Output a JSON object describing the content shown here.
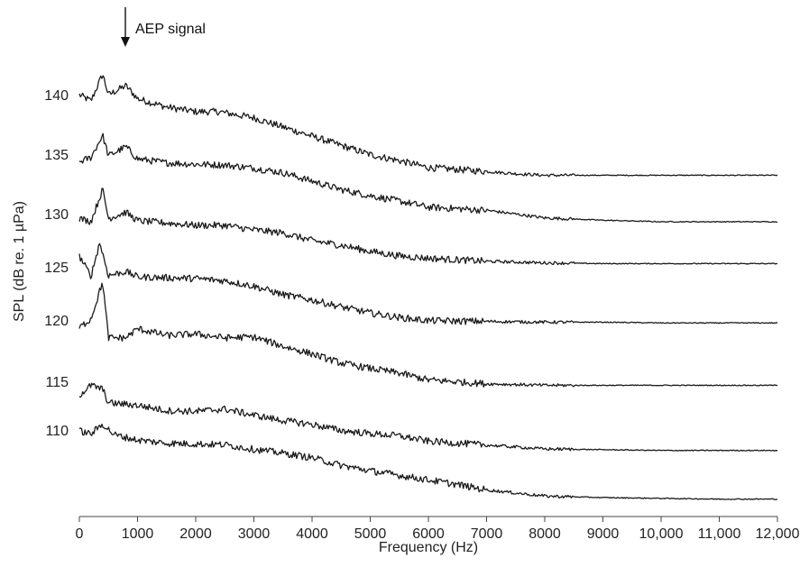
{
  "chart_data": {
    "type": "line",
    "title": "",
    "xlabel": "Frequency (Hz)",
    "ylabel": "SPL (dB re. 1 µPa)",
    "xlim": [
      0,
      12000
    ],
    "x_ticks": [
      0,
      1000,
      2000,
      3000,
      4000,
      5000,
      6000,
      7000,
      8000,
      9000,
      10000,
      11000,
      12000
    ],
    "x_tick_labels": [
      "0",
      "1000",
      "2000",
      "3000",
      "4000",
      "5000",
      "6000",
      "7000",
      "8000",
      "9000",
      "10,000",
      "11,000",
      "12,000"
    ],
    "y_tick_labels": [
      "140",
      "135",
      "130",
      "125",
      "120",
      "115",
      "110"
    ],
    "grid": false,
    "annotation": {
      "text": "AEP signal",
      "x": 800
    },
    "series": [
      {
        "level": 140,
        "values": [
          [
            0,
            8
          ],
          [
            200,
            0
          ],
          [
            400,
            35
          ],
          [
            500,
            8
          ],
          [
            800,
            20
          ],
          [
            1000,
            3
          ],
          [
            1500,
            -8
          ],
          [
            2000,
            -14
          ],
          [
            2400,
            -14
          ],
          [
            3000,
            -22
          ],
          [
            3500,
            -34
          ],
          [
            4000,
            -46
          ],
          [
            4500,
            -58
          ],
          [
            5000,
            -70
          ],
          [
            5500,
            -78
          ],
          [
            6000,
            -87
          ],
          [
            7000,
            -92
          ],
          [
            7500,
            -95
          ],
          [
            8000,
            -97
          ],
          [
            9000,
            -97
          ],
          [
            10000,
            -97
          ],
          [
            11000,
            -97
          ],
          [
            12000,
            -97
          ]
        ]
      },
      {
        "level": 135,
        "values": [
          [
            0,
            -2
          ],
          [
            200,
            4
          ],
          [
            400,
            33
          ],
          [
            500,
            6
          ],
          [
            800,
            18
          ],
          [
            1000,
            2
          ],
          [
            1500,
            -3
          ],
          [
            2000,
            -5
          ],
          [
            2500,
            -6
          ],
          [
            3000,
            -10
          ],
          [
            3500,
            -16
          ],
          [
            4000,
            -27
          ],
          [
            4500,
            -38
          ],
          [
            5000,
            -46
          ],
          [
            5500,
            -53
          ],
          [
            6000,
            -61
          ],
          [
            7000,
            -65
          ],
          [
            7500,
            -70
          ],
          [
            8000,
            -75
          ],
          [
            9000,
            -78
          ],
          [
            10000,
            -80
          ],
          [
            11000,
            -80
          ],
          [
            12000,
            -80
          ]
        ]
      },
      {
        "level": 130,
        "values": [
          [
            0,
            2
          ],
          [
            200,
            -2
          ],
          [
            400,
            40
          ],
          [
            500,
            2
          ],
          [
            800,
            10
          ],
          [
            1000,
            -1
          ],
          [
            2000,
            -7
          ],
          [
            2500,
            -7
          ],
          [
            3000,
            -13
          ],
          [
            3500,
            -17
          ],
          [
            4000,
            -27
          ],
          [
            4500,
            -33
          ],
          [
            5000,
            -41
          ],
          [
            5500,
            -47
          ],
          [
            6000,
            -50
          ],
          [
            7000,
            -54
          ],
          [
            8000,
            -56
          ],
          [
            9000,
            -57
          ],
          [
            10000,
            -57
          ],
          [
            11000,
            -57
          ],
          [
            12000,
            -57
          ]
        ]
      },
      {
        "level": 125,
        "values": [
          [
            0,
            22
          ],
          [
            200,
            -4
          ],
          [
            350,
            40
          ],
          [
            500,
            -3
          ],
          [
            800,
            2
          ],
          [
            1000,
            -5
          ],
          [
            2000,
            -7
          ],
          [
            2500,
            -10
          ],
          [
            3000,
            -17
          ],
          [
            3500,
            -28
          ],
          [
            4000,
            -35
          ],
          [
            4500,
            -44
          ],
          [
            5000,
            -52
          ],
          [
            5500,
            -58
          ],
          [
            6000,
            -62
          ],
          [
            7000,
            -63
          ],
          [
            8000,
            -64
          ],
          [
            9000,
            -64
          ],
          [
            10000,
            -65
          ],
          [
            11000,
            -65
          ],
          [
            12000,
            -65
          ]
        ]
      },
      {
        "level": 120,
        "values": [
          [
            0,
            -2
          ],
          [
            200,
            10
          ],
          [
            400,
            58
          ],
          [
            500,
            -15
          ],
          [
            800,
            -15
          ],
          [
            1000,
            -3
          ],
          [
            1500,
            -12
          ],
          [
            2000,
            -10
          ],
          [
            2500,
            -15
          ],
          [
            3000,
            -14
          ],
          [
            3500,
            -26
          ],
          [
            4000,
            -36
          ],
          [
            4500,
            -48
          ],
          [
            5000,
            -55
          ],
          [
            5500,
            -61
          ],
          [
            6000,
            -70
          ],
          [
            7000,
            -75
          ],
          [
            8000,
            -77
          ],
          [
            9000,
            -77
          ],
          [
            10000,
            -77
          ],
          [
            11000,
            -77
          ],
          [
            12000,
            -77
          ]
        ]
      },
      {
        "level": 115,
        "values": [
          [
            0,
            -10
          ],
          [
            200,
            3
          ],
          [
            400,
            -2
          ],
          [
            500,
            -20
          ],
          [
            1000,
            -23
          ],
          [
            1500,
            -30
          ],
          [
            2000,
            -31
          ],
          [
            2500,
            -28
          ],
          [
            3000,
            -36
          ],
          [
            3500,
            -43
          ],
          [
            4000,
            -48
          ],
          [
            4500,
            -56
          ],
          [
            5000,
            -60
          ],
          [
            5500,
            -63
          ],
          [
            6000,
            -70
          ],
          [
            7000,
            -75
          ],
          [
            8000,
            -80
          ],
          [
            9000,
            -81
          ],
          [
            10000,
            -82
          ],
          [
            11000,
            -82
          ],
          [
            12000,
            -82
          ]
        ]
      },
      {
        "level": 110,
        "values": [
          [
            0,
            7
          ],
          [
            200,
            3
          ],
          [
            400,
            16
          ],
          [
            600,
            2
          ],
          [
            1000,
            -5
          ],
          [
            1500,
            -9
          ],
          [
            2000,
            -10
          ],
          [
            2500,
            -11
          ],
          [
            3000,
            -17
          ],
          [
            3500,
            -22
          ],
          [
            4000,
            -28
          ],
          [
            4500,
            -38
          ],
          [
            5000,
            -45
          ],
          [
            5500,
            -51
          ],
          [
            6000,
            -57
          ],
          [
            6500,
            -63
          ],
          [
            7000,
            -70
          ],
          [
            7500,
            -74
          ],
          [
            8000,
            -78
          ],
          [
            9000,
            -80
          ],
          [
            10000,
            -81
          ],
          [
            11000,
            -82
          ],
          [
            12000,
            -82
          ]
        ]
      }
    ]
  }
}
